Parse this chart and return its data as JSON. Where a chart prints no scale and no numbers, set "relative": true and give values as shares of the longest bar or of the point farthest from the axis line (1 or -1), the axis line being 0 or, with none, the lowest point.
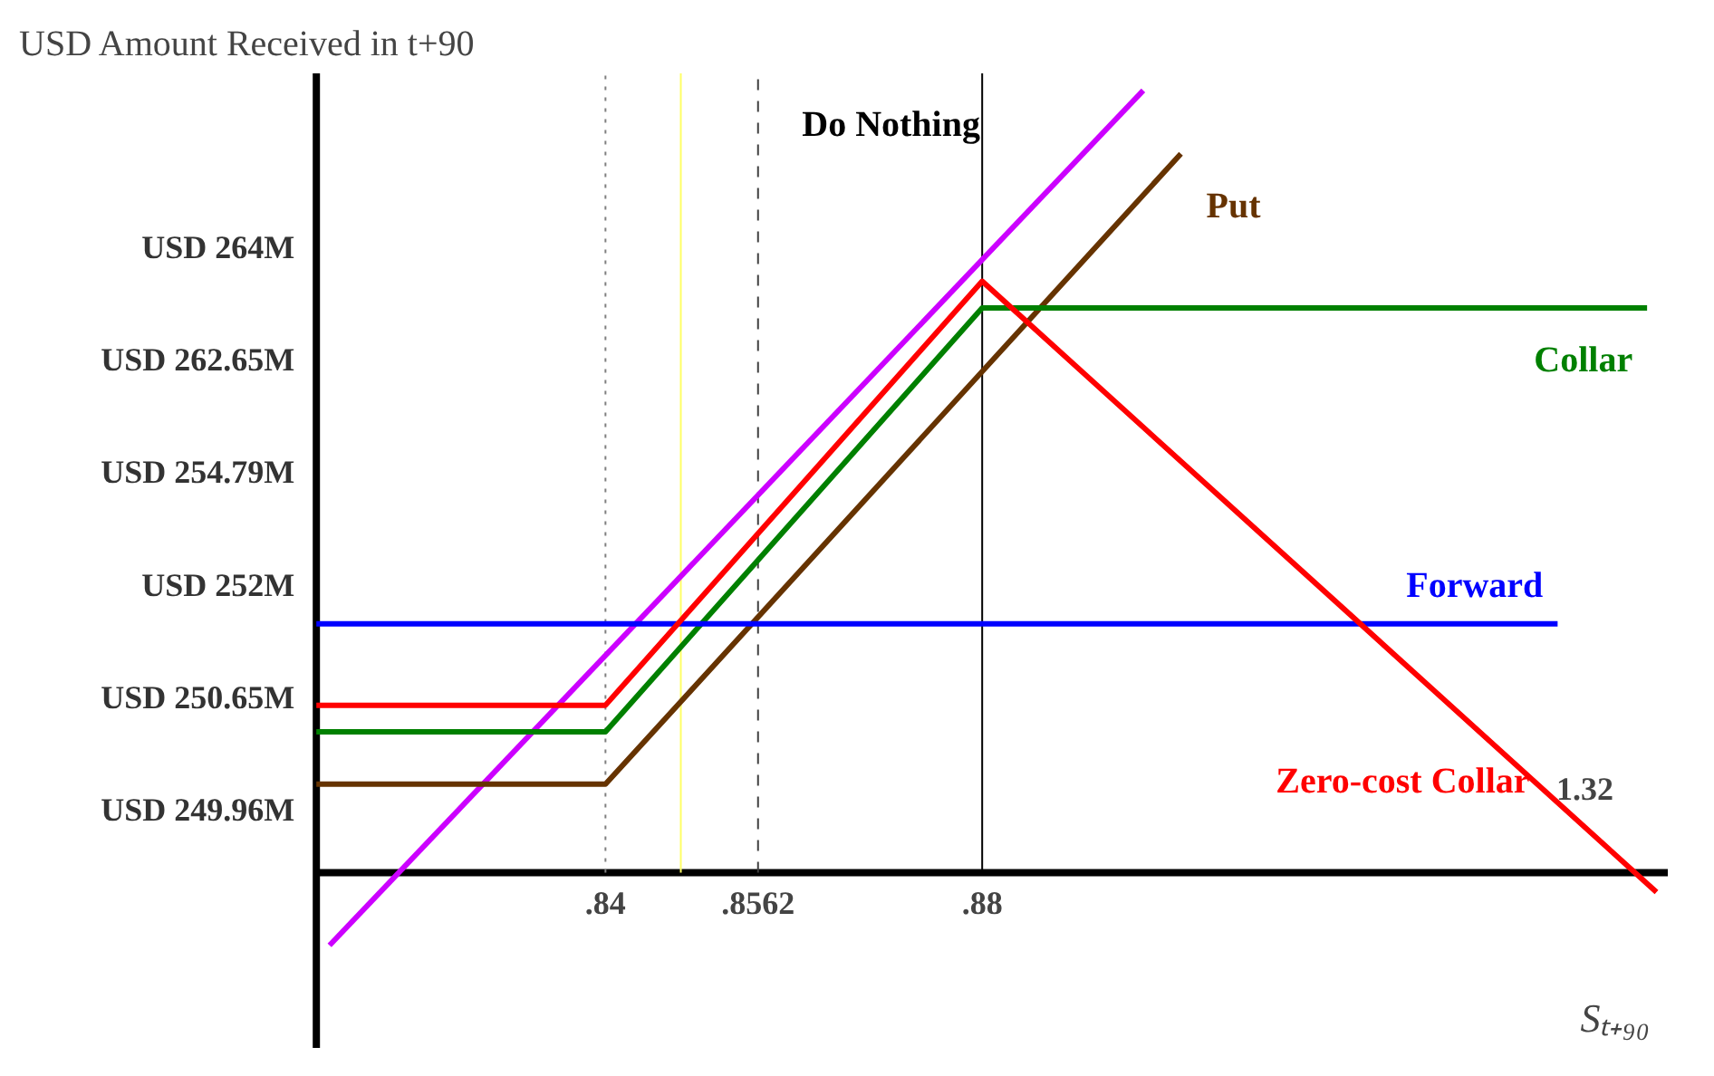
{
  "chart_data": {
    "type": "line",
    "relative": true,
    "ylabel": "USD Amount Received in t+90",
    "xlabel": "Sₜ₊₉₀",
    "xlim": [
      0.8093,
      0.9528
    ],
    "xticks": [
      {
        "value": 0.84,
        "label": ".84"
      },
      {
        "value": 0.8562,
        "label": ".8562"
      },
      {
        "value": 0.88,
        "label": ".88"
      }
    ],
    "series": [
      {
        "name": "Do Nothing",
        "color": "#cc00ff",
        "x": [
          0.8107,
          0.8971
        ],
        "values": [
          -0.093,
          1.0
        ]
      },
      {
        "name": "Put",
        "color": "#663300",
        "x": [
          0.8093,
          0.84,
          0.9011
        ],
        "values": [
          0.113,
          0.113,
          0.919
        ]
      },
      {
        "name": "Collar",
        "color": "#008000",
        "x": [
          0.8093,
          0.84,
          0.88,
          0.9506
        ],
        "values": [
          0.18,
          0.18,
          0.722,
          0.722
        ]
      },
      {
        "name": "Forward",
        "color": "#0000ff",
        "x": [
          0.8093,
          0.9411
        ],
        "values": [
          0.318,
          0.318
        ]
      },
      {
        "name": "Zero-cost Collar",
        "color": "#ff0000",
        "x": [
          0.8093,
          0.84,
          0.88,
          0.9516
        ],
        "values": [
          0.214,
          0.214,
          0.756,
          -0.025
        ]
      }
    ],
    "ref_lines": [
      {
        "axis": "x",
        "value": 0.84,
        "color": "#808080",
        "line_style": "dotted"
      },
      {
        "axis": "x",
        "value": 0.848,
        "color": "#ffff66",
        "line_style": "solid"
      },
      {
        "axis": "x",
        "value": 0.8562,
        "color": "#404040",
        "line_style": "dashed"
      },
      {
        "axis": "x",
        "value": 0.88,
        "color": "#000000",
        "line_style": "solid"
      }
    ],
    "annotations": [
      "USD 264M",
      "USD 262.65M",
      "USD 254.79M",
      "USD 252M",
      "USD 250.65M",
      "USD 249.96M",
      "1.32"
    ],
    "legend": false,
    "grid": false,
    "line_style": "solid",
    "marker": "none"
  }
}
